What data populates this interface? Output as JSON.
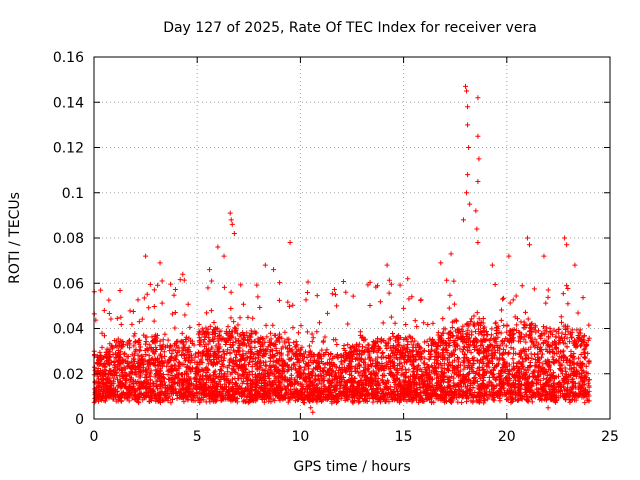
{
  "chart_data": {
    "type": "scatter",
    "title": "Day 127 of 2025, Rate Of TEC Index for receiver vera",
    "xlabel": "GPS time / hours",
    "ylabel": "ROTI / TECUs",
    "xlim": [
      0,
      25
    ],
    "ylim": [
      0,
      0.16
    ],
    "xticks": [
      0,
      5,
      10,
      15,
      20,
      25
    ],
    "yticks": [
      0,
      0.02,
      0.04,
      0.06,
      0.08,
      0.1,
      0.12,
      0.14,
      0.16
    ],
    "xtick_labels": [
      "0",
      "5",
      "10",
      "15",
      "20",
      "25"
    ],
    "ytick_labels": [
      "0",
      "0.02",
      "0.04",
      "0.06",
      "0.08",
      "0.1",
      "0.12",
      "0.14",
      "0.16"
    ],
    "grid": true,
    "marker": "+",
    "color": "#ff0000",
    "series": [
      {
        "name": "ROTI",
        "summary": "dense band 0.01-0.035 from 0 to 24 h with spikes",
        "outliers": [
          {
            "x": 0.5,
            "y": 0.048
          },
          {
            "x": 1.3,
            "y": 0.045
          },
          {
            "x": 2.5,
            "y": 0.072
          },
          {
            "x": 3.2,
            "y": 0.069
          },
          {
            "x": 3.3,
            "y": 0.061
          },
          {
            "x": 4.3,
            "y": 0.064
          },
          {
            "x": 5.6,
            "y": 0.066
          },
          {
            "x": 5.7,
            "y": 0.061
          },
          {
            "x": 6.0,
            "y": 0.076
          },
          {
            "x": 6.3,
            "y": 0.072
          },
          {
            "x": 6.6,
            "y": 0.091
          },
          {
            "x": 6.65,
            "y": 0.088
          },
          {
            "x": 6.7,
            "y": 0.086
          },
          {
            "x": 6.8,
            "y": 0.082
          },
          {
            "x": 8.3,
            "y": 0.068
          },
          {
            "x": 8.7,
            "y": 0.066
          },
          {
            "x": 9.5,
            "y": 0.078
          },
          {
            "x": 11.7,
            "y": 0.055
          },
          {
            "x": 12.2,
            "y": 0.056
          },
          {
            "x": 14.2,
            "y": 0.068
          },
          {
            "x": 15.2,
            "y": 0.062
          },
          {
            "x": 16.8,
            "y": 0.069
          },
          {
            "x": 17.3,
            "y": 0.073
          },
          {
            "x": 17.9,
            "y": 0.088
          },
          {
            "x": 18.0,
            "y": 0.147
          },
          {
            "x": 18.05,
            "y": 0.145
          },
          {
            "x": 18.1,
            "y": 0.138
          },
          {
            "x": 18.1,
            "y": 0.13
          },
          {
            "x": 18.15,
            "y": 0.12
          },
          {
            "x": 18.1,
            "y": 0.108
          },
          {
            "x": 18.05,
            "y": 0.1
          },
          {
            "x": 18.2,
            "y": 0.095
          },
          {
            "x": 18.6,
            "y": 0.142
          },
          {
            "x": 18.6,
            "y": 0.125
          },
          {
            "x": 18.65,
            "y": 0.115
          },
          {
            "x": 18.6,
            "y": 0.105
          },
          {
            "x": 18.5,
            "y": 0.092
          },
          {
            "x": 18.55,
            "y": 0.084
          },
          {
            "x": 18.6,
            "y": 0.078
          },
          {
            "x": 19.3,
            "y": 0.068
          },
          {
            "x": 20.1,
            "y": 0.072
          },
          {
            "x": 21.0,
            "y": 0.08
          },
          {
            "x": 21.1,
            "y": 0.077
          },
          {
            "x": 21.8,
            "y": 0.072
          },
          {
            "x": 22.8,
            "y": 0.08
          },
          {
            "x": 22.9,
            "y": 0.077
          },
          {
            "x": 23.3,
            "y": 0.068
          },
          {
            "x": 10.6,
            "y": 0.003
          },
          {
            "x": 10.5,
            "y": 0.005
          },
          {
            "x": 22.0,
            "y": 0.005
          }
        ]
      }
    ]
  }
}
